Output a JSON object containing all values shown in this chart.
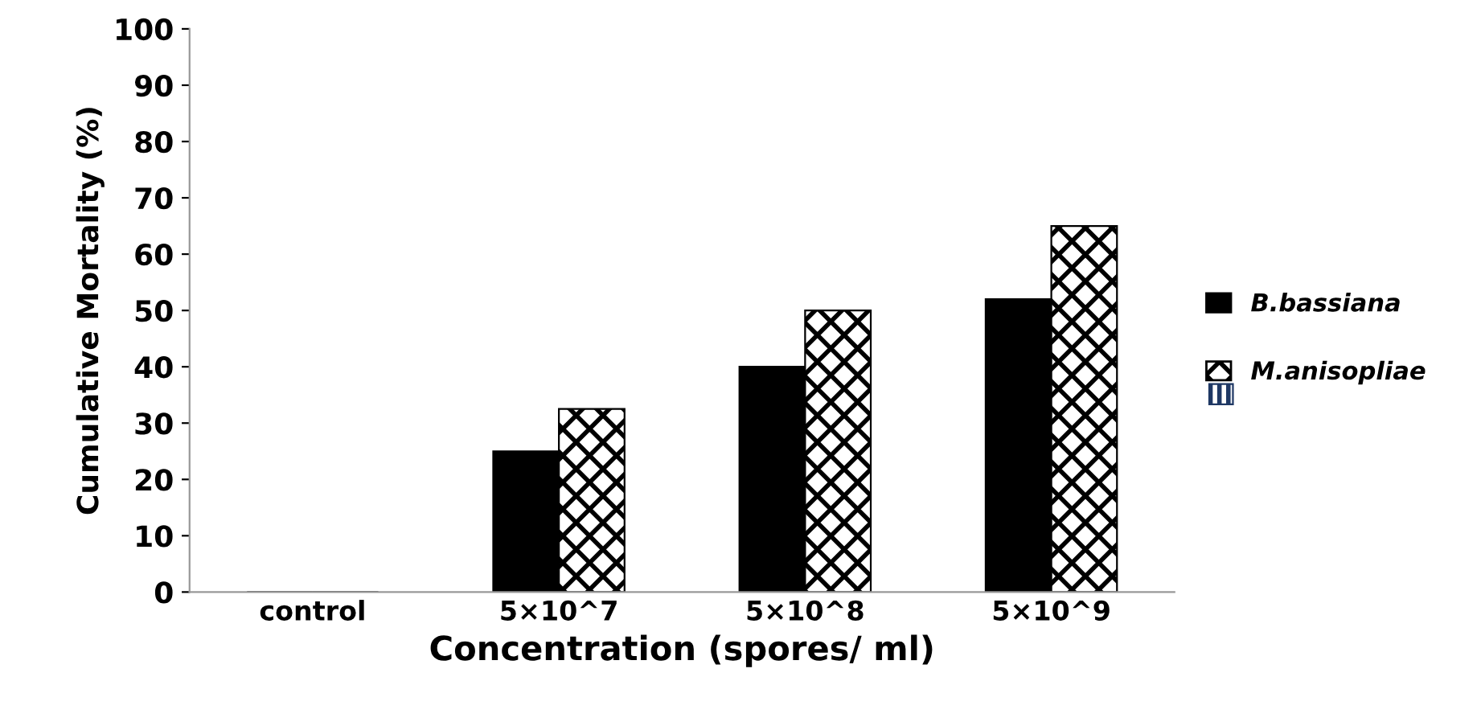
{
  "chart_data": {
    "type": "bar",
    "xlabel": "Concentration (spores/ ml)",
    "ylabel": "Cumulative Mortality (%)",
    "categories": [
      "control",
      "5×10^7",
      "5×10^8",
      "5×10^9"
    ],
    "series": [
      {
        "name": "B.bassiana",
        "color": "#000000",
        "values": [
          0,
          25,
          40,
          52
        ]
      },
      {
        "name": "M.anisopliae",
        "color": "#000000",
        "values": [
          0,
          32.5,
          50,
          65
        ]
      }
    ],
    "ylim": [
      0,
      100
    ],
    "yticks": [
      0,
      10,
      20,
      30,
      40,
      50,
      60,
      70,
      80,
      90,
      100
    ],
    "grid": false,
    "legend": "right"
  }
}
